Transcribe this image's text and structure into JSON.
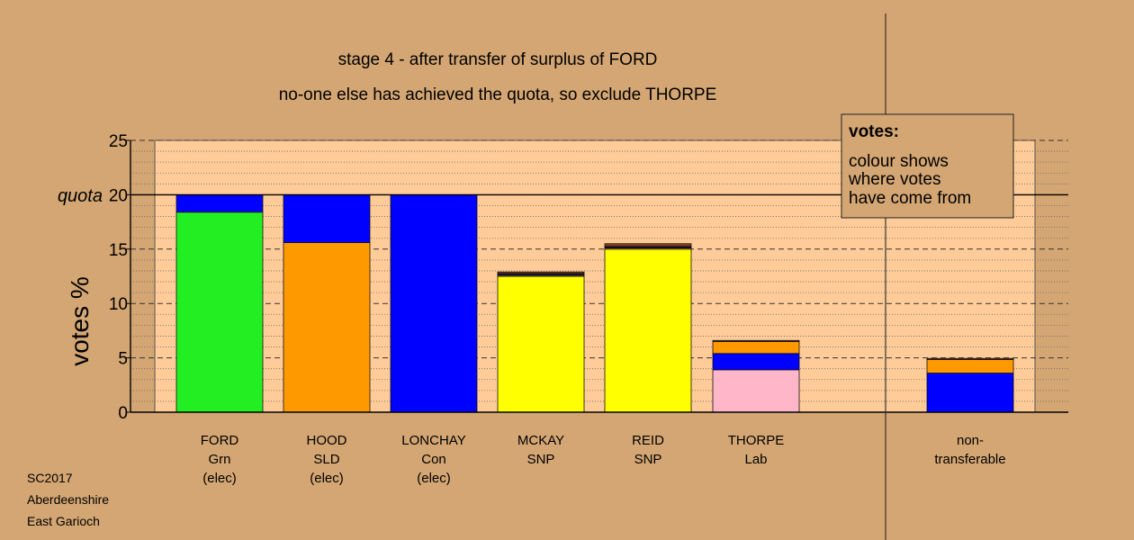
{
  "chart_data": {
    "type": "bar",
    "stacked": true,
    "title": "stage 4 - after transfer of surplus of FORD",
    "subtitle": "no-one else has achieved the quota, so exclude THORPE",
    "ylabel": "votes %",
    "ylim": [
      0,
      25
    ],
    "yticks": [
      0,
      5,
      10,
      15,
      20,
      25
    ],
    "quota": 20,
    "quota_label": "quota",
    "categories": [
      {
        "lines": [
          "FORD",
          "Grn",
          "(elec)"
        ],
        "segments": [
          {
            "color": "#22ee22",
            "value": 18.4
          },
          {
            "color": "#0000ff",
            "value": 1.6
          }
        ]
      },
      {
        "lines": [
          "HOOD",
          "SLD",
          "(elec)"
        ],
        "segments": [
          {
            "color": "#ff9900",
            "value": 15.6
          },
          {
            "color": "#0000ff",
            "value": 4.4
          }
        ]
      },
      {
        "lines": [
          "LONCHAY",
          "Con",
          "(elec)"
        ],
        "segments": [
          {
            "color": "#0000ff",
            "value": 20.0
          }
        ]
      },
      {
        "lines": [
          "MCKAY",
          "SNP"
        ],
        "segments": [
          {
            "color": "#ffff00",
            "value": 12.5
          },
          {
            "color": "#ff9900",
            "value": 0.1
          },
          {
            "color": "#0000ff",
            "value": 0.1
          },
          {
            "color": "#22ee22",
            "value": 0.05
          },
          {
            "color": "#8b4513",
            "value": 0.15
          }
        ]
      },
      {
        "lines": [
          "REID",
          "SNP"
        ],
        "segments": [
          {
            "color": "#ffff00",
            "value": 15.0
          },
          {
            "color": "#ff9900",
            "value": 0.1
          },
          {
            "color": "#0000ff",
            "value": 0.1
          },
          {
            "color": "#22ee22",
            "value": 0.05
          },
          {
            "color": "#8b4513",
            "value": 0.25
          }
        ]
      },
      {
        "lines": [
          "THORPE",
          "Lab"
        ],
        "segments": [
          {
            "color": "#ffb6c8",
            "value": 3.9
          },
          {
            "color": "#0000ff",
            "value": 1.5
          },
          {
            "color": "#ff9900",
            "value": 1.1
          },
          {
            "color": "#8b4513",
            "value": 0.1
          }
        ]
      }
    ],
    "nontransferable": {
      "lines": [
        "non-",
        "transferable"
      ],
      "segments": [
        {
          "color": "#0000ff",
          "value": 3.6
        },
        {
          "color": "#ff9900",
          "value": 1.25
        },
        {
          "color": "#8b4513",
          "value": 0.1
        }
      ]
    },
    "legend": {
      "heading": "votes:",
      "lines": [
        "colour shows",
        "where votes",
        "have come from"
      ]
    },
    "footer": [
      "SC2017",
      "Aberdeenshire",
      "East Garioch"
    ],
    "colors": {
      "background": "#d4a673",
      "plot": "#ffcc99"
    }
  }
}
